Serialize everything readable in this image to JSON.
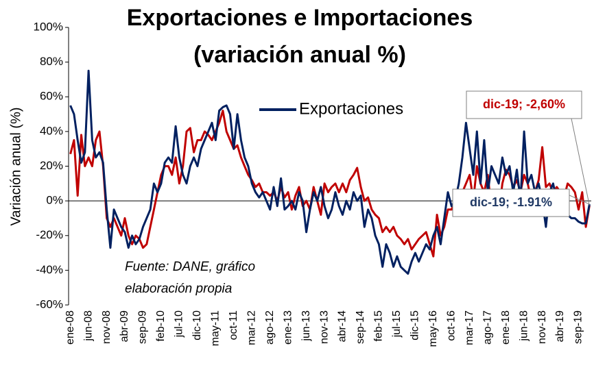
{
  "chart_data": {
    "type": "line",
    "title": "Exportaciones e Importaciones",
    "subtitle": "(variación anual %)",
    "y_label": "Variación anual (%)",
    "source": "Fuente: DANE, gráfico",
    "source2": "elaboración propia",
    "annotations": [
      {
        "text": "dic-19; -2,60%",
        "color": "#c00000"
      },
      {
        "text": "dic-19; -1.91%",
        "color": "#1f3864"
      }
    ],
    "categories": [
      "ene-08",
      null,
      null,
      null,
      null,
      "jun-08",
      null,
      null,
      null,
      null,
      "nov-08",
      null,
      null,
      null,
      null,
      "abr-09",
      null,
      null,
      null,
      null,
      "sep-09",
      null,
      null,
      null,
      null,
      "feb-10",
      null,
      null,
      null,
      null,
      "jul-10",
      null,
      null,
      null,
      null,
      "dic-10",
      null,
      null,
      null,
      null,
      "may-11",
      null,
      null,
      null,
      null,
      "oct-11",
      null,
      null,
      null,
      null,
      "mar-12",
      null,
      null,
      null,
      null,
      "ago-12",
      null,
      null,
      null,
      null,
      "ene-13",
      null,
      null,
      null,
      null,
      "jun-13",
      null,
      null,
      null,
      null,
      "nov-13",
      null,
      null,
      null,
      null,
      "abr-14",
      null,
      null,
      null,
      null,
      "sep-14",
      null,
      null,
      null,
      null,
      "feb-15",
      null,
      null,
      null,
      null,
      "jul-15",
      null,
      null,
      null,
      null,
      "dic-15",
      null,
      null,
      null,
      null,
      "may-16",
      null,
      null,
      null,
      null,
      "oct-16",
      null,
      null,
      null,
      null,
      "mar-17",
      null,
      null,
      null,
      null,
      "ago-17",
      null,
      null,
      null,
      null,
      "ene-18",
      null,
      null,
      null,
      null,
      "jun-18",
      null,
      null,
      null,
      null,
      "nov-18",
      null,
      null,
      null,
      null,
      "abr-19",
      null,
      null,
      null,
      null,
      "sep-19",
      null,
      null,
      null
    ],
    "series": [
      {
        "name": "Exportaciones",
        "color": "#002060",
        "values": [
          55,
          50,
          35,
          22,
          28,
          75,
          35,
          25,
          28,
          22,
          -5,
          -27,
          -5,
          -10,
          -15,
          -18,
          -27,
          -20,
          -25,
          -22,
          -15,
          -10,
          -5,
          10,
          5,
          10,
          22,
          25,
          22,
          43,
          25,
          15,
          10,
          20,
          25,
          20,
          30,
          35,
          40,
          45,
          35,
          52,
          54,
          55,
          50,
          30,
          50,
          35,
          25,
          20,
          10,
          5,
          2,
          5,
          0,
          -5,
          8,
          -3,
          13,
          -5,
          -3,
          0,
          -5,
          5,
          0,
          -18,
          -5,
          5,
          0,
          8,
          -3,
          -10,
          -5,
          5,
          -3,
          -8,
          0,
          -5,
          5,
          0,
          3,
          -15,
          -5,
          -10,
          -20,
          -25,
          -38,
          -25,
          -30,
          -38,
          -32,
          -38,
          -40,
          -42,
          -35,
          -30,
          -35,
          -30,
          -25,
          -28,
          -20,
          -15,
          -25,
          -10,
          5,
          -3,
          0,
          10,
          25,
          45,
          30,
          15,
          40,
          10,
          35,
          5,
          20,
          15,
          10,
          25,
          15,
          20,
          5,
          18,
          0,
          40,
          10,
          15,
          5,
          10,
          0,
          -15,
          5,
          10,
          0,
          5,
          3,
          -8,
          -10,
          -10,
          -12,
          -13,
          -13,
          -1.91
        ]
      },
      {
        "color": "#c00000",
        "values": [
          27,
          35,
          3,
          38,
          20,
          25,
          20,
          35,
          40,
          20,
          -10,
          -15,
          -10,
          -15,
          -20,
          -10,
          -20,
          -25,
          -20,
          -22,
          -27,
          -25,
          -15,
          -5,
          5,
          15,
          20,
          20,
          15,
          25,
          10,
          20,
          40,
          42,
          28,
          35,
          35,
          40,
          38,
          35,
          40,
          45,
          52,
          40,
          35,
          30,
          32,
          25,
          20,
          15,
          12,
          8,
          10,
          5,
          5,
          3,
          5,
          0,
          8,
          2,
          5,
          -5,
          3,
          8,
          -3,
          0,
          -5,
          8,
          0,
          -8,
          10,
          5,
          8,
          10,
          5,
          10,
          5,
          12,
          15,
          19,
          8,
          0,
          2,
          -5,
          -8,
          -10,
          -18,
          -15,
          -18,
          -15,
          -20,
          -22,
          -25,
          -22,
          -28,
          -25,
          -22,
          -20,
          -18,
          -25,
          -32,
          -8,
          -20,
          -15,
          -5,
          -5,
          0,
          2,
          5,
          10,
          15,
          0,
          20,
          10,
          5,
          15,
          -5,
          5,
          -8,
          10,
          18,
          15,
          8,
          12,
          5,
          15,
          10,
          0,
          5,
          12,
          31,
          8,
          10,
          5,
          8,
          5,
          2,
          10,
          8,
          5,
          -5,
          5,
          -15,
          -2.6
        ]
      }
    ],
    "ylim": [
      -60,
      100
    ],
    "yticks": [
      {
        "value": -60,
        "label": "-60%"
      },
      {
        "value": -40,
        "label": "-40%"
      },
      {
        "value": -20,
        "label": "-20%"
      },
      {
        "value": 0,
        "label": "0%"
      },
      {
        "value": 20,
        "label": "20%"
      },
      {
        "value": 40,
        "label": "40%"
      },
      {
        "value": 60,
        "label": "60%"
      },
      {
        "value": 80,
        "label": "80%"
      },
      {
        "value": 100,
        "label": "100%"
      }
    ],
    "grid": false
  }
}
